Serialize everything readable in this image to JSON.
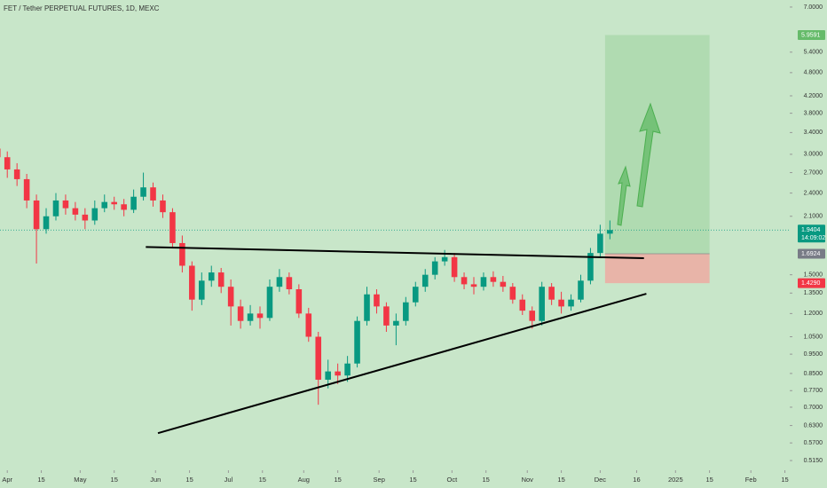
{
  "chart_data": {
    "type": "candlestick",
    "title": "FET / Tether PERPETUAL FUTURES, 1D, MEXC",
    "log_scale": true,
    "up_color": "#089981",
    "down_color": "#f23645",
    "xlim": [
      "2024-03-29",
      "2025-02-17"
    ],
    "ylim": [
      0.487,
      7.29
    ],
    "xticks": [
      {
        "value": "2024-04-01",
        "label": "Apr"
      },
      {
        "value": "2024-04-15",
        "label": "15"
      },
      {
        "value": "2024-05-01",
        "label": "May"
      },
      {
        "value": "2024-05-15",
        "label": "15"
      },
      {
        "value": "2024-06-01",
        "label": "Jun"
      },
      {
        "value": "2024-06-15",
        "label": "15"
      },
      {
        "value": "2024-07-01",
        "label": "Jul"
      },
      {
        "value": "2024-07-15",
        "label": "15"
      },
      {
        "value": "2024-08-01",
        "label": "Aug"
      },
      {
        "value": "2024-08-15",
        "label": "15"
      },
      {
        "value": "2024-09-01",
        "label": "Sep"
      },
      {
        "value": "2024-09-15",
        "label": "15"
      },
      {
        "value": "2024-10-01",
        "label": "Oct"
      },
      {
        "value": "2024-10-15",
        "label": "15"
      },
      {
        "value": "2024-11-01",
        "label": "Nov"
      },
      {
        "value": "2024-11-15",
        "label": "15"
      },
      {
        "value": "2024-12-01",
        "label": "Dec"
      },
      {
        "value": "2024-12-16",
        "label": "16"
      },
      {
        "value": "2025-01-01",
        "label": "2025"
      },
      {
        "value": "2025-01-15",
        "label": "15"
      },
      {
        "value": "2025-02-01",
        "label": "Feb"
      },
      {
        "value": "2025-02-15",
        "label": "15"
      }
    ],
    "yticks": [
      {
        "value": 7,
        "label": "7.0000"
      },
      {
        "value": 5.4,
        "label": "5.4000"
      },
      {
        "value": 4.8,
        "label": "4.8000"
      },
      {
        "value": 4.2,
        "label": "4.2000"
      },
      {
        "value": 3.8,
        "label": "3.8000"
      },
      {
        "value": 3.4,
        "label": "3.4000"
      },
      {
        "value": 3,
        "label": "3.0000"
      },
      {
        "value": 2.7,
        "label": "2.7000"
      },
      {
        "value": 2.4,
        "label": "2.4000"
      },
      {
        "value": 2.1,
        "label": "2.1000"
      },
      {
        "value": 1.5,
        "label": "1.5000"
      },
      {
        "value": 1.35,
        "label": "1.3500"
      },
      {
        "value": 1.2,
        "label": "1.2000"
      },
      {
        "value": 1.05,
        "label": "1.0500"
      },
      {
        "value": 0.95,
        "label": "0.9500"
      },
      {
        "value": 0.85,
        "label": "0.8500"
      },
      {
        "value": 0.77,
        "label": "0.7700"
      },
      {
        "value": 0.7,
        "label": "0.7000"
      },
      {
        "value": 0.63,
        "label": "0.6300"
      },
      {
        "value": 0.57,
        "label": "0.5700"
      },
      {
        "value": 0.515,
        "label": "0.5150"
      }
    ],
    "x": [
      "2024-03-28",
      "2024-04-01",
      "2024-04-05",
      "2024-04-09",
      "2024-04-13",
      "2024-04-17",
      "2024-04-21",
      "2024-04-25",
      "2024-04-29",
      "2024-05-03",
      "2024-05-07",
      "2024-05-11",
      "2024-05-15",
      "2024-05-19",
      "2024-05-23",
      "2024-05-27",
      "2024-05-31",
      "2024-06-04",
      "2024-06-08",
      "2024-06-12",
      "2024-06-16",
      "2024-06-20",
      "2024-06-24",
      "2024-06-28",
      "2024-07-02",
      "2024-07-06",
      "2024-07-10",
      "2024-07-14",
      "2024-07-18",
      "2024-07-22",
      "2024-07-26",
      "2024-07-30",
      "2024-08-03",
      "2024-08-07",
      "2024-08-11",
      "2024-08-15",
      "2024-08-19",
      "2024-08-23",
      "2024-08-27",
      "2024-08-31",
      "2024-09-04",
      "2024-09-08",
      "2024-09-12",
      "2024-09-16",
      "2024-09-20",
      "2024-09-24",
      "2024-09-28",
      "2024-10-02",
      "2024-10-06",
      "2024-10-10",
      "2024-10-14",
      "2024-10-18",
      "2024-10-22",
      "2024-10-26",
      "2024-10-30",
      "2024-11-03",
      "2024-11-07",
      "2024-11-11",
      "2024-11-15",
      "2024-11-19",
      "2024-11-23",
      "2024-11-27",
      "2024-12-01",
      "2024-12-05"
    ],
    "open": [
      3.1,
      2.95,
      2.75,
      2.6,
      2.3,
      1.95,
      2.1,
      2.3,
      2.2,
      2.12,
      2.05,
      2.2,
      2.28,
      2.25,
      2.18,
      2.35,
      2.48,
      2.3,
      2.15,
      1.8,
      1.58,
      1.3,
      1.45,
      1.52,
      1.4,
      1.25,
      1.15,
      1.2,
      1.17,
      1.4,
      1.48,
      1.38,
      1.2,
      1.05,
      0.82,
      0.86,
      0.84,
      0.9,
      1.15,
      1.34,
      1.25,
      1.12,
      1.15,
      1.28,
      1.4,
      1.5,
      1.62,
      1.66,
      1.48,
      1.42,
      1.4,
      1.48,
      1.44,
      1.4,
      1.3,
      1.22,
      1.15,
      1.4,
      1.3,
      1.25,
      1.3,
      1.45,
      1.7,
      1.9
    ],
    "high": [
      3.25,
      3.05,
      2.85,
      2.68,
      2.38,
      2.2,
      2.4,
      2.38,
      2.28,
      2.2,
      2.3,
      2.38,
      2.35,
      2.32,
      2.45,
      2.7,
      2.55,
      2.38,
      2.2,
      1.88,
      1.62,
      1.52,
      1.58,
      1.56,
      1.46,
      1.3,
      1.26,
      1.25,
      1.46,
      1.55,
      1.52,
      1.42,
      1.24,
      1.08,
      0.92,
      0.9,
      0.94,
      1.18,
      1.4,
      1.38,
      1.28,
      1.2,
      1.32,
      1.44,
      1.55,
      1.66,
      1.73,
      1.7,
      1.52,
      1.48,
      1.52,
      1.53,
      1.49,
      1.43,
      1.34,
      1.25,
      1.44,
      1.43,
      1.36,
      1.34,
      1.5,
      1.75,
      2.0,
      2.05
    ],
    "low": [
      2.85,
      2.62,
      2.5,
      2.2,
      1.6,
      1.9,
      2.05,
      2.12,
      2.05,
      1.95,
      2.0,
      2.15,
      2.18,
      2.1,
      2.14,
      2.3,
      2.22,
      2.08,
      1.75,
      1.52,
      1.22,
      1.26,
      1.4,
      1.35,
      1.12,
      1.1,
      1.12,
      1.1,
      1.15,
      1.36,
      1.34,
      1.17,
      1.02,
      0.71,
      0.78,
      0.8,
      0.81,
      0.88,
      1.12,
      1.2,
      1.08,
      1.0,
      1.12,
      1.25,
      1.36,
      1.46,
      1.58,
      1.44,
      1.38,
      1.34,
      1.37,
      1.4,
      1.36,
      1.27,
      1.19,
      1.1,
      1.12,
      1.26,
      1.2,
      1.22,
      1.28,
      1.42,
      1.66,
      1.84
    ],
    "close": [
      2.95,
      2.75,
      2.6,
      2.3,
      1.95,
      2.1,
      2.3,
      2.2,
      2.12,
      2.05,
      2.2,
      2.28,
      2.25,
      2.18,
      2.35,
      2.48,
      2.3,
      2.15,
      1.8,
      1.58,
      1.3,
      1.45,
      1.52,
      1.4,
      1.25,
      1.15,
      1.2,
      1.17,
      1.4,
      1.48,
      1.38,
      1.2,
      1.05,
      0.82,
      0.86,
      0.84,
      0.9,
      1.15,
      1.34,
      1.25,
      1.12,
      1.15,
      1.28,
      1.4,
      1.5,
      1.62,
      1.66,
      1.48,
      1.42,
      1.4,
      1.48,
      1.44,
      1.4,
      1.3,
      1.22,
      1.15,
      1.4,
      1.3,
      1.25,
      1.3,
      1.45,
      1.7,
      1.9,
      1.9404
    ],
    "trendlines": [
      {
        "x": [
          "2024-05-28",
          "2024-12-19"
        ],
        "y": [
          1.76,
          1.65
        ]
      },
      {
        "x": [
          "2024-06-02",
          "2024-12-20"
        ],
        "y": [
          0.603,
          1.345
        ]
      }
    ],
    "position": {
      "start": "2024-12-03",
      "end": "2025-01-15",
      "entry": 1.6924,
      "target": 5.9591,
      "stop": {
        "value": 1.429,
        "label": "1.4290"
      },
      "profit_color": "#a5d6a7",
      "loss_color": "#e8b4a8"
    },
    "price_tags": [
      {
        "value": 5.9591,
        "color": "#66bb6a"
      },
      {
        "value": 1.9404,
        "color": "#089981",
        "countdown": "14:09:02"
      },
      {
        "value": 1.6924,
        "color": "#787b86"
      },
      {
        "value": {
          "value": 1.429,
          "label": "1.4290"
        },
        "color": "#f23645"
      }
    ]
  }
}
